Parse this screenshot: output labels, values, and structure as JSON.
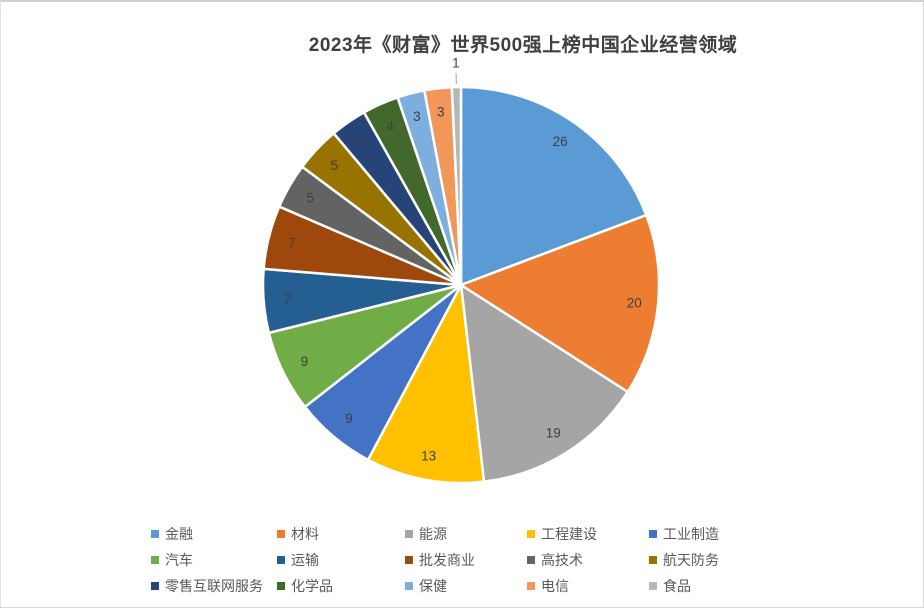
{
  "title": "2023年《财富》世界500强上榜中国企业经营领域",
  "chart_data": {
    "type": "pie",
    "title": "2023年《财富》世界500强上榜中国企业经营领域",
    "total": 135,
    "start_angle_deg": 0,
    "direction": "clockwise",
    "legend_position": "bottom",
    "data_labels": "value",
    "label_color": "#404040",
    "leader_line_color": "#a6a6a6",
    "slices": [
      {
        "label": "金融",
        "value": 26,
        "color": "#5B9BD5"
      },
      {
        "label": "材料",
        "value": 20,
        "color": "#ED7D31"
      },
      {
        "label": "能源",
        "value": 19,
        "color": "#A5A5A5"
      },
      {
        "label": "工程建设",
        "value": 13,
        "color": "#FFC000"
      },
      {
        "label": "工业制造",
        "value": 9,
        "color": "#4472C4"
      },
      {
        "label": "汽车",
        "value": 9,
        "color": "#70AD47"
      },
      {
        "label": "运输",
        "value": 7,
        "color": "#255E91"
      },
      {
        "label": "批发商业",
        "value": 7,
        "color": "#9E480E"
      },
      {
        "label": "高技术",
        "value": 5,
        "color": "#636363"
      },
      {
        "label": "航天防务",
        "value": 5,
        "color": "#997300"
      },
      {
        "label": "零售互联网服务",
        "value": 4,
        "color": "#264478"
      },
      {
        "label": "化学品",
        "value": 4,
        "color": "#43682B"
      },
      {
        "label": "保健",
        "value": 3,
        "color": "#7CAFDD"
      },
      {
        "label": "电信",
        "value": 3,
        "color": "#F1975A"
      },
      {
        "label": "食品",
        "value": 1,
        "color": "#B7B7B7",
        "label_outside": true
      }
    ]
  }
}
